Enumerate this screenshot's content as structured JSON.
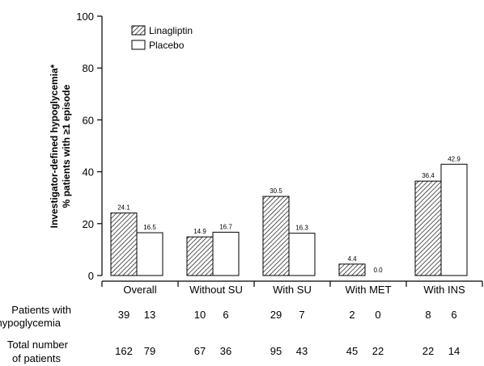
{
  "chart_data": {
    "type": "bar",
    "ylabel_line1": "Investigator-defined hypoglycemia*",
    "ylabel_line2": "% patients with ≥1 episode",
    "ylim": [
      0,
      100
    ],
    "yticks": [
      "0",
      "20",
      "40",
      "60",
      "80",
      "100"
    ],
    "categories": [
      "Overall",
      "Without SU",
      "With SU",
      "With MET",
      "With INS"
    ],
    "series": [
      {
        "name": "Linagliptin",
        "pattern": "hatched",
        "values": [
          24.1,
          14.9,
          30.5,
          4.4,
          36.4
        ],
        "value_labels": [
          "24.1",
          "14.9",
          "30.5",
          "4.4",
          "36.4"
        ]
      },
      {
        "name": "Placebo",
        "pattern": "open",
        "values": [
          16.5,
          16.7,
          16.3,
          0.0,
          42.9
        ],
        "value_labels": [
          "16.5",
          "16.7",
          "16.3",
          "0.0",
          "42.9"
        ]
      }
    ],
    "legend_position": "top-left",
    "grid": false
  },
  "table": {
    "rows": [
      {
        "label_line1": "Patients with",
        "label_line2": "hypoglycemia",
        "values": [
          [
            "39",
            "13"
          ],
          [
            "10",
            "6"
          ],
          [
            "29",
            "7"
          ],
          [
            "2",
            "0"
          ],
          [
            "8",
            "6"
          ]
        ]
      },
      {
        "label_line1": "Total number",
        "label_line2": "of patients",
        "values": [
          [
            "162",
            "79"
          ],
          [
            "67",
            "36"
          ],
          [
            "95",
            "43"
          ],
          [
            "45",
            "22"
          ],
          [
            "22",
            "14"
          ]
        ]
      }
    ]
  },
  "colors": {
    "axis": "#000000",
    "bar_fill_open": "#ffffff",
    "hatch": "#000000"
  }
}
